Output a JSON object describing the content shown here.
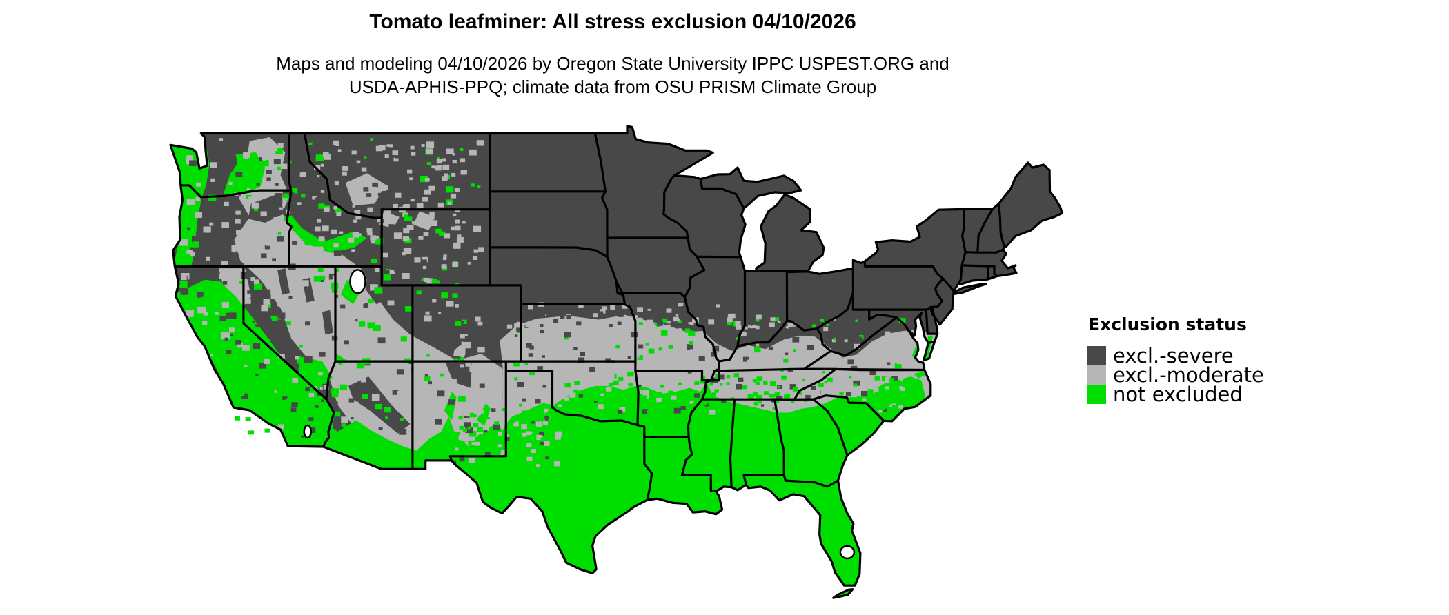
{
  "header": {
    "title": "Tomato leafminer: All stress exclusion 04/10/2026",
    "subtitle_line1": "Maps and modeling 04/10/2026 by Oregon State University IPPC USPEST.ORG and",
    "subtitle_line2": "USDA-APHIS-PPQ; climate data from OSU PRISM Climate Group"
  },
  "legend": {
    "title": "Exclusion status",
    "items": [
      {
        "label": "excl.-severe",
        "color": "#484848"
      },
      {
        "label": "excl.-moderate",
        "color": "#b6b6b6"
      },
      {
        "label": "not excluded",
        "color": "#00dd00"
      }
    ]
  },
  "map": {
    "region": "Contiguous United States",
    "date_shown": "04/10/2026",
    "water_color": "#ffffff",
    "border_color": "#000000"
  }
}
